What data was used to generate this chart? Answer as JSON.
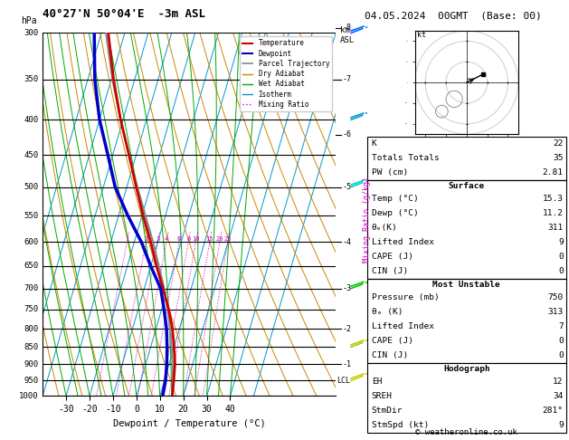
{
  "title_left": "40°27'N 50°04'E  -3m ASL",
  "title_right": "04.05.2024  00GMT  (Base: 00)",
  "xlabel": "Dewpoint / Temperature (°C)",
  "copyright": "© weatheronline.co.uk",
  "p_ticks": [
    300,
    350,
    400,
    450,
    500,
    550,
    600,
    650,
    700,
    750,
    800,
    850,
    900,
    950,
    1000
  ],
  "t_range": [
    -40,
    40
  ],
  "t_ticks": [
    -30,
    -20,
    -10,
    0,
    10,
    20,
    30,
    40
  ],
  "skew": 45,
  "temp_profile_t": [
    15.3,
    14.0,
    12.5,
    10.0,
    7.0,
    3.0,
    -2.0,
    -7.5,
    -13.0,
    -19.5,
    -26.0,
    -33.0,
    -41.0,
    -49.0,
    -57.0
  ],
  "temp_profile_p": [
    1000,
    950,
    900,
    850,
    800,
    750,
    700,
    650,
    600,
    550,
    500,
    450,
    400,
    350,
    300
  ],
  "dewp_profile_t": [
    11.2,
    10.5,
    9.0,
    7.0,
    4.5,
    1.0,
    -3.0,
    -10.0,
    -17.0,
    -26.0,
    -35.0,
    -42.0,
    -50.0,
    -57.0,
    -63.0
  ],
  "dewp_profile_p": [
    1000,
    950,
    900,
    850,
    800,
    750,
    700,
    650,
    600,
    550,
    500,
    450,
    400,
    350,
    300
  ],
  "parcel_t": [
    15.3,
    13.5,
    11.5,
    9.0,
    6.0,
    2.5,
    -1.5,
    -6.5,
    -12.0,
    -18.5,
    -25.5,
    -33.0,
    -41.0,
    -49.5,
    -58.0
  ],
  "parcel_p": [
    1000,
    950,
    900,
    850,
    800,
    750,
    700,
    650,
    600,
    550,
    500,
    450,
    400,
    350,
    300
  ],
  "lcl_pressure": 950,
  "km_ticks": [
    8,
    7,
    6,
    5,
    4,
    3,
    2,
    1
  ],
  "km_pressures": [
    295,
    350,
    420,
    500,
    600,
    700,
    800,
    900
  ],
  "km_barb_pressures": [
    300,
    400,
    500,
    700,
    850,
    950
  ],
  "km_barb_colors": [
    "#0066ff",
    "#0099cc",
    "#00cccc",
    "#00cc00",
    "#aacc00",
    "#cccc00"
  ],
  "mixing_ratio_values": [
    1,
    2,
    3,
    4,
    6,
    8,
    10,
    15,
    20,
    25
  ],
  "bg_color": "#ffffff",
  "temp_color": "#cc0000",
  "dewp_color": "#0000cc",
  "parcel_color": "#888888",
  "dry_adiabat_color": "#cc8800",
  "wet_adiabat_color": "#00aa00",
  "isotherm_color": "#0099cc",
  "mixing_ratio_color": "#cc00cc",
  "grid_color": "#000000"
}
